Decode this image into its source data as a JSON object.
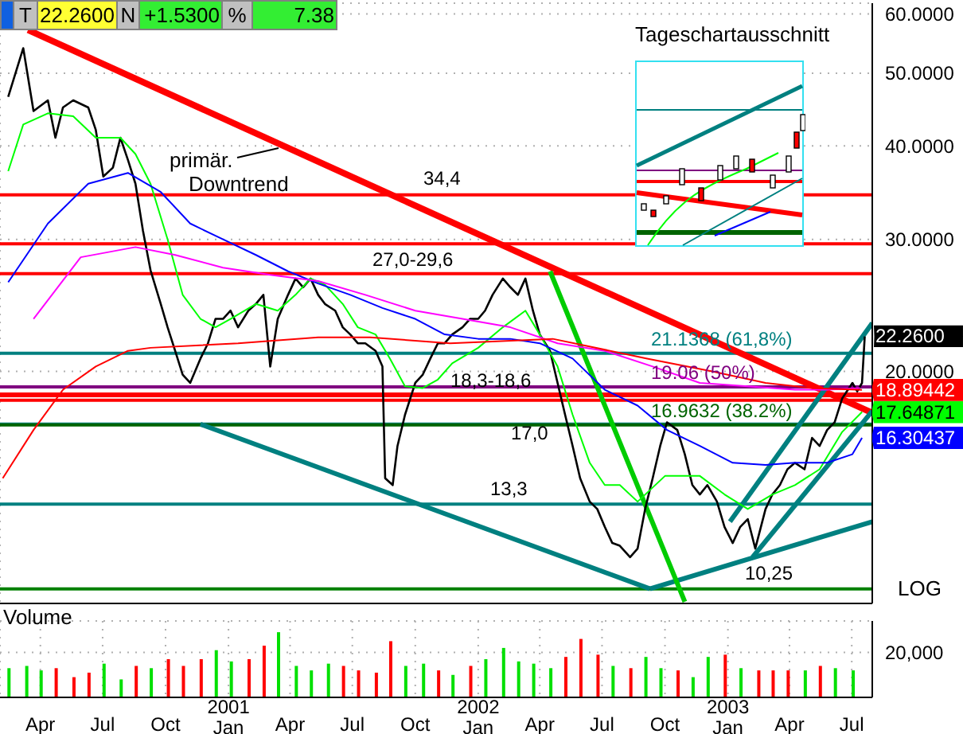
{
  "chart_data": [
    {
      "type": "line",
      "xlim": [
        "2000-02-02",
        "2003-07-31"
      ],
      "ylim": [
        9.8,
        62
      ],
      "log": "y",
      "grid": true,
      "tick_labels": "y",
      "xticks": [
        {
          "value": "2000-04-01",
          "label": null
        },
        {
          "value": "2000-07-01",
          "label": null
        },
        {
          "value": "2000-10-01",
          "label": null
        },
        {
          "value": "2001-01-01",
          "label": null
        },
        {
          "value": "2001-04-01",
          "label": null
        },
        {
          "value": "2001-07-01",
          "label": null
        },
        {
          "value": "2001-10-01",
          "label": null
        },
        {
          "value": "2002-01-01",
          "label": null
        },
        {
          "value": "2002-04-01",
          "label": null
        },
        {
          "value": "2002-07-01",
          "label": null
        },
        {
          "value": "2002-10-01",
          "label": null
        },
        {
          "value": "2003-01-01",
          "label": null
        },
        {
          "value": "2003-04-01",
          "label": null
        },
        {
          "value": "2003-07-01",
          "label": null
        }
      ],
      "yticks": [
        {
          "value": 20,
          "label": "20.0000"
        },
        {
          "value": 30,
          "label": "30.0000"
        },
        {
          "value": 40,
          "label": "40.0000"
        },
        {
          "value": 50,
          "label": "50.0000"
        },
        {
          "value": 60,
          "label": "60.0000"
        }
      ],
      "series": [
        {
          "color": "#000000",
          "x": [
            "2000-02-14",
            "2000-03-07",
            "2000-03-22",
            "2000-04-12",
            "2000-04-23",
            "2000-05-04",
            "2000-05-19",
            "2000-06-10",
            "2000-06-21",
            "2000-07-02",
            "2000-07-16",
            "2000-07-27",
            "2000-08-07",
            "2000-08-18",
            "2000-08-29",
            "2000-09-09",
            "2000-09-24",
            "2000-10-04",
            "2000-10-15",
            "2000-10-26",
            "2000-11-06",
            "2000-11-21",
            "2000-12-02",
            "2000-12-13",
            "2000-12-24",
            "2001-01-04",
            "2001-01-15",
            "2001-01-30",
            "2001-02-10",
            "2001-02-21",
            "2001-03-03",
            "2001-03-14",
            "2001-03-29",
            "2001-04-09",
            "2001-04-20",
            "2001-05-01",
            "2001-05-12",
            "2001-05-22",
            "2001-06-06",
            "2001-06-17",
            "2001-06-28",
            "2001-07-09",
            "2001-07-20",
            "2001-08-04",
            "2001-08-14",
            "2001-08-18",
            "2001-08-29",
            "2001-09-05",
            "2001-09-16",
            "2001-10-01",
            "2001-10-12",
            "2001-10-23",
            "2001-11-03",
            "2001-11-13",
            "2001-11-24",
            "2001-12-09",
            "2001-12-20",
            "2002-01-01",
            "2002-01-11",
            "2002-01-22",
            "2002-02-06",
            "2002-02-17",
            "2002-02-28",
            "2002-03-11",
            "2002-03-22",
            "2002-04-01",
            "2002-04-16",
            "2002-04-27",
            "2002-05-08",
            "2002-05-19",
            "2002-05-30",
            "2002-06-13",
            "2002-06-24",
            "2002-07-05",
            "2002-07-16",
            "2002-07-27",
            "2002-08-11",
            "2002-08-22",
            "2002-09-02",
            "2002-09-13",
            "2002-09-24",
            "2002-10-04",
            "2002-10-19",
            "2002-10-30",
            "2002-11-10",
            "2002-11-21",
            "2002-12-02",
            "2002-12-16",
            "2002-12-27",
            "2003-01-08",
            "2003-01-19",
            "2003-01-30",
            "2003-02-10",
            "2003-02-25",
            "2003-03-07",
            "2003-03-18",
            "2003-03-29",
            "2003-04-09",
            "2003-04-23",
            "2003-05-04",
            "2003-05-15",
            "2003-05-26",
            "2003-06-06",
            "2003-06-17",
            "2003-07-02",
            "2003-07-09",
            "2003-07-16",
            "2003-07-20"
          ],
          "values": [
            46.5,
            54,
            44.5,
            46,
            41,
            45,
            46,
            45,
            42,
            36.4,
            37.4,
            41,
            38.3,
            35.6,
            30.8,
            27.3,
            24.6,
            22.9,
            21.3,
            19.8,
            19.3,
            20.8,
            21.8,
            23.5,
            23.5,
            24.1,
            22.9,
            24.1,
            24.6,
            25.3,
            20.3,
            23.5,
            25.3,
            26.6,
            25.9,
            26.6,
            25.3,
            24.6,
            24.1,
            22.9,
            22.4,
            21.8,
            21.8,
            21.3,
            20.3,
            14.4,
            14.1,
            15.9,
            17.5,
            19.3,
            19.8,
            20.8,
            21.8,
            21.8,
            22.4,
            22.9,
            23.5,
            23.5,
            24.1,
            25.3,
            26.6,
            25.9,
            25.3,
            26.6,
            24.1,
            22.4,
            21.3,
            19.3,
            17.5,
            15.9,
            14.4,
            13.4,
            13.1,
            12.4,
            11.8,
            11.7,
            11.3,
            11.6,
            13.1,
            14.4,
            15.9,
            17.1,
            16.7,
            15.5,
            14.1,
            13.7,
            14.1,
            13.4,
            12.4,
            11.8,
            12.4,
            12.7,
            11.6,
            13.1,
            13.7,
            14.1,
            14.8,
            15.1,
            14.8,
            16.3,
            15.9,
            16.7,
            17.1,
            18.4,
            19.3,
            18.8,
            19.3,
            22.26
          ]
        },
        {
          "color": "#00ff00",
          "x": [
            "2000-02-14",
            "2000-03-07",
            "2000-04-12",
            "2000-05-19",
            "2000-06-21",
            "2000-07-27",
            "2000-08-18",
            "2000-09-09",
            "2000-10-04",
            "2000-10-26",
            "2000-11-21",
            "2000-12-13",
            "2001-01-04",
            "2001-02-10",
            "2001-03-14",
            "2001-04-09",
            "2001-05-01",
            "2001-05-22",
            "2001-06-17",
            "2001-07-09",
            "2001-08-04",
            "2001-08-25",
            "2001-09-16",
            "2001-10-12",
            "2001-11-03",
            "2001-11-24",
            "2002-01-01",
            "2002-02-06",
            "2002-03-11",
            "2002-04-01",
            "2002-04-27",
            "2002-05-19",
            "2002-06-13",
            "2002-07-05",
            "2002-07-27",
            "2002-08-22",
            "2002-10-01",
            "2002-11-21",
            "2002-12-27",
            "2003-01-30",
            "2003-03-07",
            "2003-04-09",
            "2003-05-15",
            "2003-06-17",
            "2003-07-16"
          ],
          "values": [
            37.0,
            42.7,
            44.2,
            43.8,
            41.0,
            41.0,
            39.0,
            35.6,
            30.0,
            25.3,
            23.5,
            22.9,
            23.5,
            24.6,
            24.1,
            25.3,
            26.6,
            26.1,
            24.6,
            22.9,
            22.4,
            20.8,
            19.1,
            19.0,
            19.5,
            20.5,
            21.5,
            22.9,
            24.1,
            22.4,
            20.3,
            17.5,
            15.1,
            14.1,
            14.1,
            13.4,
            14.5,
            14.5,
            13.7,
            13.1,
            13.7,
            14.1,
            14.8,
            16.6,
            17.64871
          ]
        },
        {
          "color": "#0000ff",
          "x": [
            "2000-02-14",
            "2000-04-12",
            "2000-06-10",
            "2000-08-07",
            "2000-09-24",
            "2000-11-06",
            "2000-12-24",
            "2001-02-10",
            "2001-03-29",
            "2001-05-12",
            "2001-06-28",
            "2001-08-14",
            "2001-10-01",
            "2001-11-13",
            "2002-01-01",
            "2002-02-17",
            "2002-04-01",
            "2002-05-19",
            "2002-07-05",
            "2002-08-22",
            "2002-10-04",
            "2002-11-21",
            "2003-01-08",
            "2003-02-25",
            "2003-04-09",
            "2003-05-26",
            "2003-07-02",
            "2003-07-16"
          ],
          "values": [
            26.3,
            31.5,
            35.6,
            36.8,
            34.7,
            31.5,
            30.0,
            28.6,
            27.2,
            26.2,
            25.3,
            24.3,
            23.5,
            22.4,
            22.1,
            22.1,
            21.8,
            20.8,
            18.9,
            18.0,
            16.7,
            15.9,
            15.1,
            15.0,
            15.1,
            15.1,
            15.5,
            16.30437
          ]
        },
        {
          "color": "#ff00ff",
          "x": [
            "2000-03-22",
            "2000-05-30",
            "2000-08-18",
            "2000-10-15",
            "2000-12-24",
            "2001-03-03",
            "2001-05-12",
            "2001-07-20",
            "2001-10-01",
            "2001-12-09",
            "2002-02-17",
            "2002-04-27",
            "2002-07-05",
            "2002-09-13",
            "2002-11-21",
            "2003-01-30",
            "2003-04-09",
            "2003-05-26",
            "2003-07-13"
          ],
          "values": [
            23.5,
            28.4,
            29.3,
            28.6,
            27.5,
            26.9,
            26.4,
            25.3,
            24.1,
            23.5,
            22.9,
            21.8,
            21.3,
            20.3,
            19.3,
            19.1,
            18.9,
            18.9,
            19.0
          ]
        },
        {
          "color": "#ff0000",
          "x": [
            "2000-02-06",
            "2000-03-22",
            "2000-05-04",
            "2000-06-21",
            "2000-08-07",
            "2000-09-09",
            "2001-01-15",
            "2001-05-12",
            "2001-07-27",
            "2001-11-21",
            "2002-04-20",
            "2002-09-05",
            "2002-12-09",
            "2003-02-25",
            "2003-05-04",
            "2003-07-16"
          ],
          "values": [
            14.4,
            16.7,
            18.9,
            20.3,
            21.3,
            21.5,
            21.8,
            22.2,
            22.2,
            21.8,
            22.1,
            20.8,
            20.0,
            19.3,
            19.0,
            18.89442
          ]
        },
        {
          "color": "#ff0000",
          "x": [
            "2000-03-14",
            "2003-07-31"
          ],
          "values": [
            57.1,
            17.6
          ]
        },
        {
          "color": "#008080",
          "x": [
            "2000-11-21",
            "2002-09-09"
          ],
          "values": [
            17.0,
            10.25
          ]
        },
        {
          "color": "#008080",
          "x": [
            "2002-09-09",
            "2003-07-31"
          ],
          "values": [
            10.25,
            12.6
          ]
        },
        {
          "color": "#008080",
          "x": [
            "2003-02-06",
            "2003-07-31"
          ],
          "values": [
            11.3,
            17.7
          ]
        },
        {
          "color": "#008080",
          "x": [
            "2003-01-04",
            "2003-07-31"
          ],
          "values": [
            12.6,
            23.2
          ]
        },
        {
          "color": "#00cc00",
          "x": [
            "2002-04-16",
            "2002-10-30"
          ],
          "values": [
            27.2,
            9.85
          ]
        }
      ],
      "ref_lines": [
        {
          "axis": "y",
          "value": 34.4,
          "label": "34,4",
          "color": "#ff0000"
        },
        {
          "axis": "y",
          "value": 29.6,
          "color": "#ff0000"
        },
        {
          "axis": "y",
          "value": 27.0,
          "color": "#ff0000"
        },
        {
          "axis": "y",
          "value": 18.6,
          "color": "#ff0000"
        },
        {
          "axis": "y",
          "value": 18.3,
          "color": "#ff0000"
        },
        {
          "axis": "y",
          "value": 17.0,
          "label": "17,0",
          "color": "#008080"
        },
        {
          "axis": "y",
          "value": 13.3,
          "label": "13,3",
          "color": "#008080"
        },
        {
          "axis": "y",
          "value": 10.25,
          "label": "10,25",
          "color": "#008000"
        },
        {
          "axis": "y",
          "value": 21.1368,
          "label": "21.1368 (61,8%)",
          "color": "#008080"
        },
        {
          "axis": "y",
          "value": 19.06,
          "label": "19.06 (50%)",
          "color": "#800080"
        },
        {
          "axis": "y",
          "value": 16.9632,
          "label": "16.9632 (38.2%)",
          "color": "#006400"
        }
      ],
      "annotations": [
        "T",
        "22.2600",
        "N",
        "+1.5300",
        "%",
        "7.38",
        "LOG",
        "Tageschartausschnitt",
        "27,0-29,6",
        "18,3-18,6",
        {
          "text": "primär. Downtrend",
          "x": "2001-03-14",
          "y": 39.7
        },
        {
          "text": "22.2600",
          "x": "2003-07-20",
          "y": 22.26
        },
        {
          "text": "18.89442",
          "x": "2003-07-16",
          "y": 18.89442
        },
        {
          "text": "17.64871",
          "x": "2003-07-16",
          "y": 17.64871
        },
        {
          "text": "16.30437",
          "x": "2003-07-16",
          "y": 16.30437
        }
      ]
    },
    {
      "type": "bar",
      "ylabel": "Volume",
      "xlim": [
        "2000-02-02",
        "2003-07-31"
      ],
      "ylim": [
        0,
        34000
      ],
      "yticks": [
        0,
        {
          "value": 20000,
          "label": "20,000"
        }
      ],
      "grid": true,
      "xticks": [
        {
          "value": "2000-04-01",
          "label": "Apr"
        },
        {
          "value": "2000-07-01",
          "label": "Jul"
        },
        {
          "value": "2000-10-01",
          "label": "Oct"
        },
        {
          "value": "2001-01-01",
          "label": "2001\nJan"
        },
        {
          "value": "2001-04-01",
          "label": "Apr"
        },
        {
          "value": "2001-07-01",
          "label": "Jul"
        },
        {
          "value": "2001-10-01",
          "label": "Oct"
        },
        {
          "value": "2002-01-01",
          "label": "2002\nJan"
        },
        {
          "value": "2002-04-01",
          "label": "Apr"
        },
        {
          "value": "2002-07-01",
          "label": "Jul"
        },
        {
          "value": "2002-10-01",
          "label": "Oct"
        },
        {
          "value": "2003-01-01",
          "label": "2003\nJan"
        },
        {
          "value": "2003-04-01",
          "label": "Apr"
        },
        {
          "value": "2003-07-01",
          "label": "Jul"
        }
      ],
      "x": [
        "2000-02-14",
        "2000-03-11",
        "2000-04-01",
        "2000-04-23",
        "2000-05-19",
        "2000-06-10",
        "2000-07-02",
        "2000-07-27",
        "2000-08-18",
        "2000-09-09",
        "2000-10-04",
        "2000-10-26",
        "2000-11-21",
        "2000-12-13",
        "2001-01-04",
        "2001-01-30",
        "2001-02-21",
        "2001-03-14",
        "2001-04-09",
        "2001-05-01",
        "2001-05-26",
        "2001-06-17",
        "2001-07-09",
        "2001-08-04",
        "2001-08-25",
        "2001-09-16",
        "2001-10-12",
        "2001-11-03",
        "2001-11-24",
        "2001-12-20",
        "2002-01-11",
        "2002-02-06",
        "2002-02-28",
        "2002-03-22",
        "2002-04-16",
        "2002-05-08",
        "2002-05-30",
        "2002-06-24",
        "2002-07-16",
        "2002-08-11",
        "2002-09-02",
        "2002-09-24",
        "2002-10-19",
        "2002-11-10",
        "2002-12-02",
        "2002-12-27",
        "2003-01-19",
        "2003-02-14",
        "2003-03-07",
        "2003-03-29",
        "2003-04-23",
        "2003-05-15",
        "2003-06-06",
        "2003-07-02"
      ],
      "values": [
        13000,
        14000,
        12000,
        13000,
        9000,
        11000,
        15000,
        8000,
        14000,
        13000,
        17000,
        14000,
        17000,
        21000,
        16000,
        17000,
        23000,
        29000,
        14000,
        12000,
        15000,
        14000,
        12000,
        11000,
        25000,
        14000,
        15000,
        12000,
        10000,
        14000,
        17000,
        22000,
        16000,
        15000,
        13000,
        18000,
        26000,
        19000,
        14000,
        13000,
        18000,
        13000,
        12000,
        9000,
        18000,
        19000,
        13000,
        12000,
        12000,
        12000,
        12000,
        14000,
        13000,
        12000
      ],
      "colors": [
        "#00e000",
        "#00e000",
        "#00e000",
        "#ff0000",
        "#ff0000",
        "#ff0000",
        "#00e000",
        "#00e000",
        "#ff0000",
        "#00e000",
        "#ff0000",
        "#ff0000",
        "#ff0000",
        "#00e000",
        "#00e000",
        "#ff0000",
        "#ff0000",
        "#00e000",
        "#00e000",
        "#00e000",
        "#00e000",
        "#ff0000",
        "#ff0000",
        "#ff0000",
        "#ff0000",
        "#00e000",
        "#00e000",
        "#ff0000",
        "#00e000",
        "#ff0000",
        "#00e000",
        "#00e000",
        "#00e000",
        "#00e000",
        "#00e000",
        "#ff0000",
        "#ff0000",
        "#ff0000",
        "#00e000",
        "#ff0000",
        "#00e000",
        "#00e000",
        "#ff0000",
        "#00e000",
        "#00e000",
        "#ff0000",
        "#00e000",
        "#ff0000",
        "#ff0000",
        "#ff0000",
        "#00e000",
        "#ff0000",
        "#00e000",
        "#00e000"
      ]
    }
  ]
}
